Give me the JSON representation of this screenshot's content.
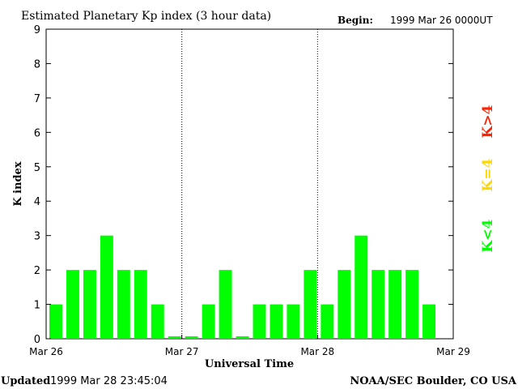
{
  "header": {
    "title": "Estimated Planetary Kp index (3 hour data)",
    "begin_label": "Begin:",
    "begin_value": "1999 Mar 26 0000UT"
  },
  "footer": {
    "updated_label": "Updated",
    "updated_value": "1999 Mar 28 23:45:04",
    "credit": "NOAA/SEC Boulder, CO USA"
  },
  "legend": {
    "items": [
      {
        "label": "K<4",
        "color": "#00ff00"
      },
      {
        "label": "K=4",
        "color": "#ffd700"
      },
      {
        "label": "K>4",
        "color": "#ff2200"
      }
    ]
  },
  "chart_data": {
    "type": "bar",
    "title": "Estimated Planetary Kp index (3 hour data)",
    "xlabel": "Universal Time",
    "ylabel": "K index",
    "ylim": [
      0,
      9
    ],
    "yticks": [
      0,
      1,
      2,
      3,
      4,
      5,
      6,
      7,
      8,
      9
    ],
    "xticks": [
      "Mar 26",
      "Mar 27",
      "Mar 28",
      "Mar 29"
    ],
    "interval_hours": 3,
    "bars_per_day": 8,
    "values": [
      1,
      2,
      2,
      3,
      2,
      2,
      1,
      0,
      0,
      1,
      2,
      0,
      1,
      1,
      1,
      2,
      1,
      2,
      3,
      2,
      2,
      2,
      1
    ],
    "bar_color": "#00ff00",
    "day_separators": "dotted"
  }
}
